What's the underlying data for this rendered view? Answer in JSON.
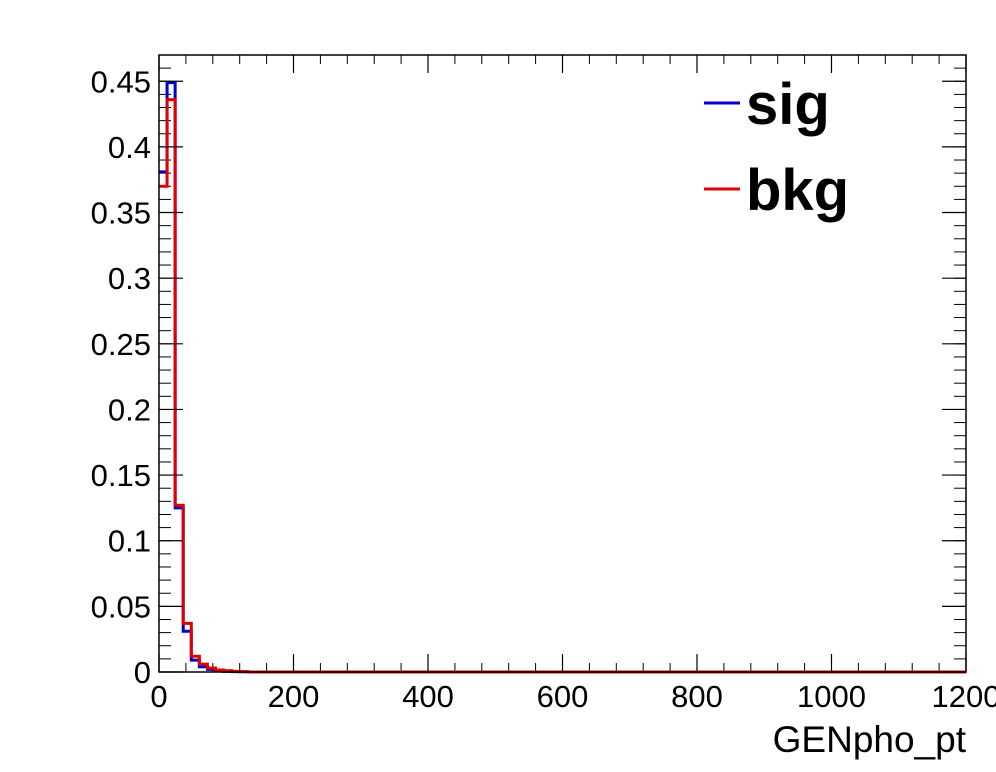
{
  "chart_data": {
    "type": "histogram",
    "xlabel": "GENpho_pt",
    "ylabel": "",
    "title": "",
    "xlim": [
      0,
      1200
    ],
    "ylim": [
      0,
      0.47
    ],
    "x_ticks": [
      0,
      200,
      400,
      600,
      800,
      1000,
      1200
    ],
    "x_tick_labels": [
      "0",
      "200",
      "400",
      "600",
      "800",
      "1000",
      "1200"
    ],
    "y_ticks": [
      0,
      0.05,
      0.1,
      0.15,
      0.2,
      0.25,
      0.3,
      0.35,
      0.4,
      0.45
    ],
    "y_tick_labels": [
      "0",
      "0.05",
      "0.1",
      "0.15",
      "0.2",
      "0.25",
      "0.3",
      "0.35",
      "0.4",
      "0.45"
    ],
    "grid": false,
    "legend_position": "top-right",
    "bin_edges": [
      0,
      12,
      24,
      36,
      48,
      60,
      72,
      84,
      96,
      108,
      120,
      132,
      1200
    ],
    "series": [
      {
        "name": "sig",
        "color": "#0000cc",
        "values": [
          0.381,
          0.449,
          0.125,
          0.031,
          0.009,
          0.004,
          0.002,
          0.001,
          0.0005,
          0.0003,
          0.0002,
          0.0
        ]
      },
      {
        "name": "bkg",
        "color": "#e00000",
        "values": [
          0.37,
          0.436,
          0.127,
          0.037,
          0.012,
          0.006,
          0.003,
          0.0015,
          0.001,
          0.0005,
          0.0003,
          0.0
        ]
      }
    ]
  }
}
